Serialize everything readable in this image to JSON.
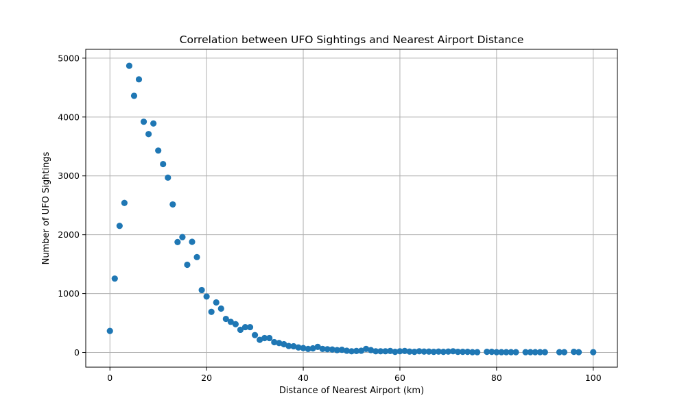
{
  "chart_data": {
    "type": "scatter",
    "title": "Correlation between UFO Sightings and Nearest Airport Distance",
    "xlabel": "Distance of Nearest Airport (km)",
    "ylabel": "Number of UFO Sightings",
    "xlim": [
      -5,
      105
    ],
    "ylim": [
      -250,
      5150
    ],
    "xticks": [
      0,
      20,
      40,
      60,
      80,
      100
    ],
    "yticks": [
      0,
      1000,
      2000,
      3000,
      4000,
      5000
    ],
    "grid": true,
    "marker_color": "#1f77b4",
    "x": [
      0,
      1,
      2,
      3,
      4,
      5,
      6,
      7,
      8,
      9,
      10,
      11,
      12,
      13,
      14,
      15,
      16,
      17,
      18,
      19,
      20,
      21,
      22,
      23,
      24,
      25,
      26,
      27,
      28,
      29,
      30,
      31,
      32,
      33,
      34,
      35,
      36,
      37,
      38,
      39,
      40,
      41,
      42,
      43,
      44,
      45,
      46,
      47,
      48,
      49,
      50,
      51,
      52,
      53,
      54,
      55,
      56,
      57,
      58,
      59,
      60,
      61,
      62,
      63,
      64,
      65,
      66,
      67,
      68,
      69,
      70,
      71,
      72,
      73,
      74,
      75,
      76,
      78,
      79,
      80,
      81,
      82,
      83,
      84,
      86,
      87,
      88,
      89,
      90,
      93,
      94,
      96,
      97,
      100
    ],
    "y": [
      365,
      1255,
      2150,
      2540,
      4870,
      4360,
      4640,
      3920,
      3710,
      3890,
      3430,
      3200,
      2970,
      2515,
      1875,
      1960,
      1490,
      1880,
      1620,
      1060,
      950,
      690,
      850,
      745,
      570,
      520,
      480,
      385,
      430,
      430,
      295,
      215,
      245,
      245,
      175,
      160,
      140,
      110,
      105,
      85,
      75,
      60,
      70,
      95,
      60,
      55,
      50,
      40,
      45,
      30,
      20,
      25,
      30,
      60,
      40,
      20,
      20,
      20,
      25,
      10,
      20,
      25,
      15,
      10,
      20,
      15,
      15,
      10,
      15,
      10,
      15,
      20,
      10,
      10,
      10,
      5,
      5,
      10,
      10,
      5,
      5,
      5,
      5,
      5,
      5,
      5,
      5,
      5,
      5,
      5,
      5,
      10,
      5,
      5
    ]
  }
}
